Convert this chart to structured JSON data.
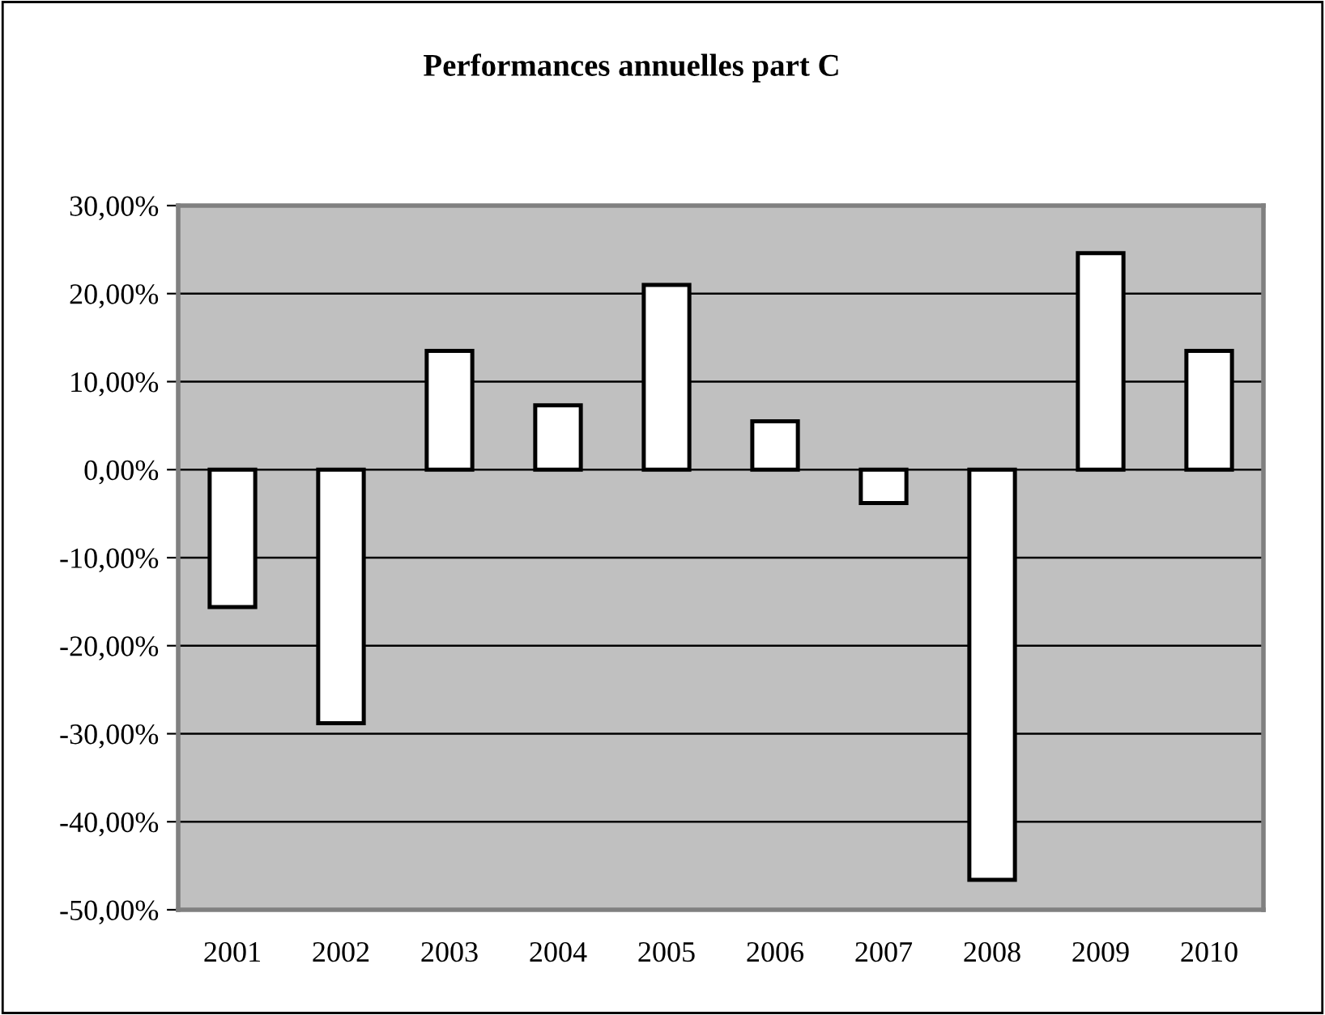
{
  "chart_data": {
    "type": "bar",
    "title": "Performances annuelles part C",
    "categories": [
      "2001",
      "2002",
      "2003",
      "2004",
      "2005",
      "2006",
      "2007",
      "2008",
      "2009",
      "2010"
    ],
    "values": [
      -15.6,
      -28.8,
      13.5,
      7.3,
      21.0,
      5.5,
      -3.8,
      -46.6,
      24.6,
      13.5
    ],
    "color": "#ffffff",
    "ylim": [
      -50,
      30
    ],
    "yticks": [
      {
        "value": 30,
        "label": "30,00%"
      },
      {
        "value": 20,
        "label": "20,00%"
      },
      {
        "value": 10,
        "label": "10,00%"
      },
      {
        "value": 0,
        "label": "0,00%"
      },
      {
        "value": -10,
        "label": "-10,00%"
      },
      {
        "value": -20,
        "label": "-20,00%"
      },
      {
        "value": -30,
        "label": "-30,00%"
      },
      {
        "value": -40,
        "label": "-40,00%"
      },
      {
        "value": -50,
        "label": "-50,00%"
      }
    ],
    "grid": "y",
    "legend": false
  }
}
